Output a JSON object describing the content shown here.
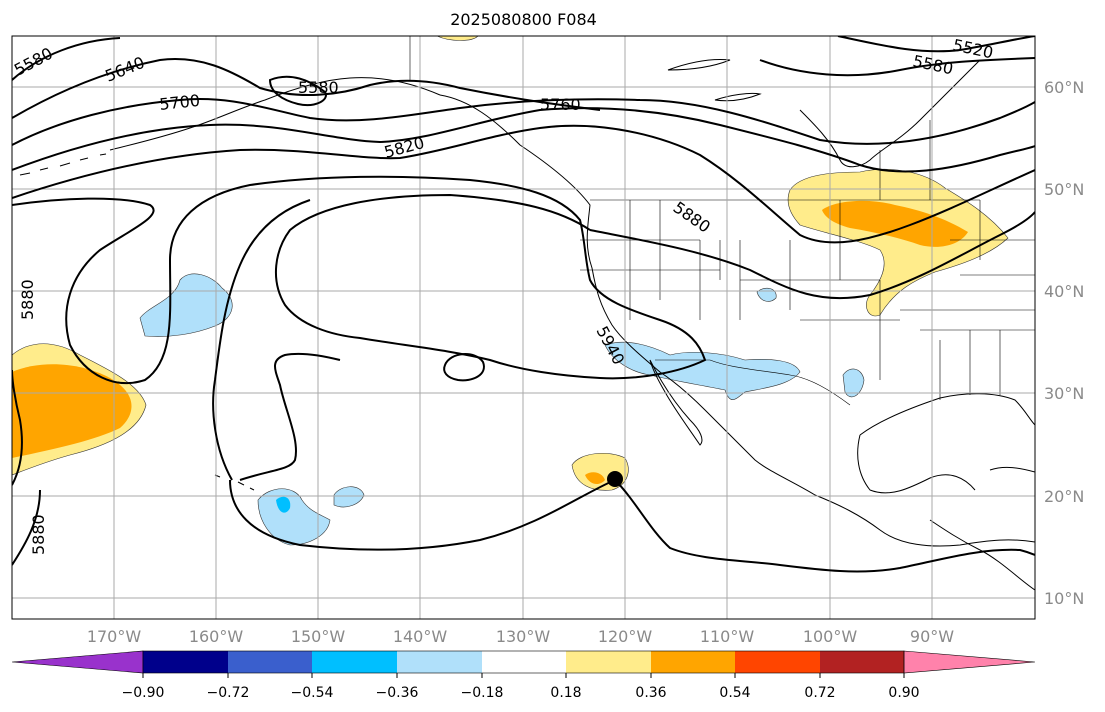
{
  "title": "2025080800 F084",
  "longitude_labels": [
    "170°W",
    "160°W",
    "150°W",
    "140°W",
    "130°W",
    "120°W",
    "110°W",
    "100°W",
    "90°W"
  ],
  "latitude_labels": [
    "60°N",
    "50°N",
    "40°N",
    "30°N",
    "20°N",
    "10°N"
  ],
  "contour_labels": {
    "c5580_w": "5580",
    "c5640": "5640",
    "c5700": "5700",
    "c5580_ak": "5580",
    "c5760": "5760",
    "c5820": "5820",
    "c5880_ne": "5880",
    "c5940": "5940",
    "c5880_w": "5880",
    "c5880_sw": "5880",
    "c5520": "5520",
    "c5580_e": "5580"
  },
  "colorbar": {
    "tick_labels": [
      "−0.90",
      "−0.72",
      "−0.54",
      "−0.36",
      "−0.18",
      "0.18",
      "0.36",
      "0.54",
      "0.72",
      "0.90"
    ],
    "colors": [
      "#9932cc",
      "#00008b",
      "#3a5fcd",
      "#00bfff",
      "#b0e0fa",
      "#ffffff",
      "#ffec8b",
      "#ffa500",
      "#ff4500",
      "#b22222",
      "#ff82ab"
    ]
  },
  "marker": "storm-center"
}
